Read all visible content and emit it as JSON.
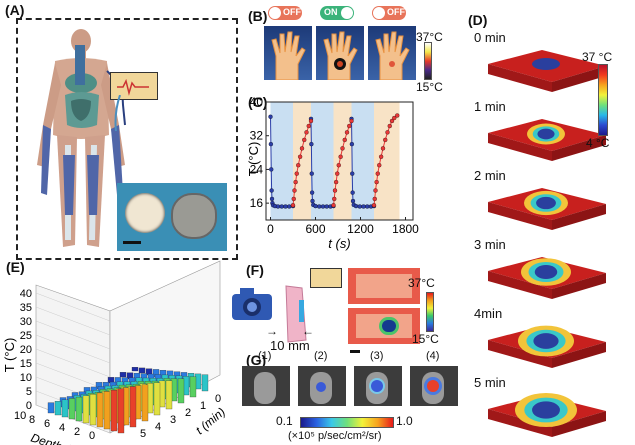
{
  "panels": {
    "a": {
      "label": "(A)"
    },
    "b": {
      "label": "(B)",
      "toggles": [
        "OFF",
        "ON",
        "OFF"
      ],
      "scale_max": "37°C",
      "scale_min": "15°C"
    },
    "c": {
      "label": "(C)",
      "ylabel": "T (°C)",
      "xlabel": "t (s)"
    },
    "d": {
      "label": "(D)",
      "times": [
        "0 min",
        "1 min",
        "2 min",
        "3 min",
        "4min",
        "5 min"
      ],
      "scale_max": "37 °C",
      "scale_min": "4 °C"
    },
    "e": {
      "label": "(E)",
      "zlabel": "T (°C)",
      "depth_label": "Depth (mm)",
      "time_label": "t (min)",
      "depth_ticks": [
        "10",
        "8",
        "6",
        "4",
        "2",
        "0"
      ],
      "time_ticks": [
        "5",
        "4",
        "3",
        "2",
        "1",
        "0"
      ],
      "z_ticks": [
        "0",
        "5",
        "10",
        "15",
        "20",
        "25",
        "30",
        "35",
        "40"
      ]
    },
    "f": {
      "label": "(F)",
      "size_label": "10 mm",
      "scale_max": "37°C",
      "scale_min": "15°C"
    },
    "g": {
      "label": "(G)",
      "mice": [
        "(1)",
        "(2)",
        "(3)",
        "(4)"
      ],
      "scale_min": "0.1",
      "scale_max": "1.0",
      "unit": "(×10⁵ p/sec/cm²/sr)"
    }
  },
  "colors": {
    "off": "#e8745a",
    "on": "#3bb37a",
    "cool_band": "#c9dff2",
    "warm_band": "#f8e3c6",
    "cool_series": "#2c3fa8",
    "warm_series": "#e83838"
  },
  "chart_data": {
    "type": "line",
    "title": "",
    "xlabel": "t (s)",
    "ylabel": "T (°C)",
    "xlim": [
      -60,
      1900
    ],
    "ylim": [
      12,
      40
    ],
    "xticks": [
      0,
      600,
      1200,
      1800
    ],
    "yticks": [
      16,
      24,
      32,
      40
    ],
    "series": [
      {
        "values": [
          [
            0,
            36.5
          ],
          [
            5,
            30
          ],
          [
            10,
            24
          ],
          [
            15,
            19
          ],
          [
            20,
            17
          ],
          [
            25,
            16
          ],
          [
            35,
            15.5
          ],
          [
            60,
            15.3
          ],
          [
            100,
            15.2
          ],
          [
            150,
            15.2
          ],
          [
            200,
            15.2
          ],
          [
            250,
            15.2
          ],
          [
            300,
            15.3
          ],
          [
            540,
            36
          ],
          [
            545,
            30
          ],
          [
            550,
            23
          ],
          [
            555,
            18.5
          ],
          [
            560,
            16.5
          ],
          [
            570,
            15.6
          ],
          [
            600,
            15.3
          ],
          [
            650,
            15.2
          ],
          [
            700,
            15.2
          ],
          [
            750,
            15.2
          ],
          [
            800,
            15.2
          ],
          [
            840,
            15.3
          ],
          [
            1080,
            36
          ],
          [
            1085,
            30
          ],
          [
            1090,
            23
          ],
          [
            1095,
            18.5
          ],
          [
            1100,
            16.5
          ],
          [
            1110,
            15.6
          ],
          [
            1140,
            15.3
          ],
          [
            1190,
            15.2
          ],
          [
            1240,
            15.2
          ],
          [
            1290,
            15.2
          ],
          [
            1340,
            15.2
          ],
          [
            1380,
            15.3
          ]
        ]
      },
      {
        "values": [
          [
            300,
            15.5
          ],
          [
            310,
            17
          ],
          [
            320,
            19
          ],
          [
            335,
            21
          ],
          [
            350,
            23
          ],
          [
            370,
            25
          ],
          [
            395,
            27
          ],
          [
            420,
            29
          ],
          [
            450,
            31
          ],
          [
            480,
            32.8
          ],
          [
            510,
            34.3
          ],
          [
            540,
            35.5
          ],
          [
            840,
            15.5
          ],
          [
            850,
            17
          ],
          [
            860,
            19
          ],
          [
            875,
            21
          ],
          [
            890,
            23
          ],
          [
            910,
            25
          ],
          [
            935,
            27
          ],
          [
            960,
            29
          ],
          [
            990,
            31
          ],
          [
            1020,
            32.8
          ],
          [
            1050,
            34.3
          ],
          [
            1080,
            35.5
          ],
          [
            1380,
            15.5
          ],
          [
            1390,
            17
          ],
          [
            1400,
            19
          ],
          [
            1415,
            21
          ],
          [
            1430,
            23
          ],
          [
            1450,
            25
          ],
          [
            1475,
            27
          ],
          [
            1500,
            29
          ],
          [
            1530,
            31
          ],
          [
            1560,
            32.8
          ],
          [
            1590,
            34.3
          ],
          [
            1620,
            35.5
          ],
          [
            1650,
            36.2
          ],
          [
            1690,
            36.8
          ]
        ]
      }
    ]
  }
}
